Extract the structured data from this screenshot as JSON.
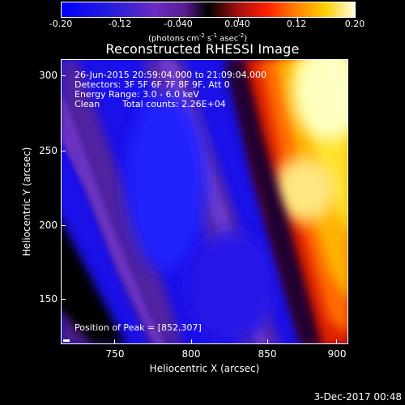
{
  "colorbar": {
    "tick_labels": [
      "-0.20",
      "-0.12",
      "-0.040",
      "0.040",
      "0.12",
      "0.20"
    ],
    "units_line": "(photons cm",
    "units_exp1": "-2",
    "units_mid1": " s",
    "units_exp2": "-1",
    "units_mid2": " asec",
    "units_exp3": "-2",
    "units_end": ")"
  },
  "title": "Reconstructed RHESSI Image",
  "overlay": {
    "time_range": "26-Jun-2015 20:59:04.000 to 21:09:04.000",
    "detectors": "Detectors: 3F 5F 6F 7F 8F 9F, Att 0",
    "energy": "Energy Range: 3.0 - 6.0 keV",
    "clean": "Clean",
    "total_counts": "Total counts: 2.26E+04",
    "peak": "Position of Peak = [852,307]"
  },
  "axes": {
    "xlabel": "Heliocentric X (arcsec)",
    "ylabel": "Heliocentric Y (arcsec)",
    "x_ticks": [
      "750",
      "800",
      "850",
      "900"
    ],
    "y_ticks": [
      "300",
      "250",
      "200",
      "150"
    ]
  },
  "footer": {
    "date": "3-Dec-2017 00:48"
  }
}
